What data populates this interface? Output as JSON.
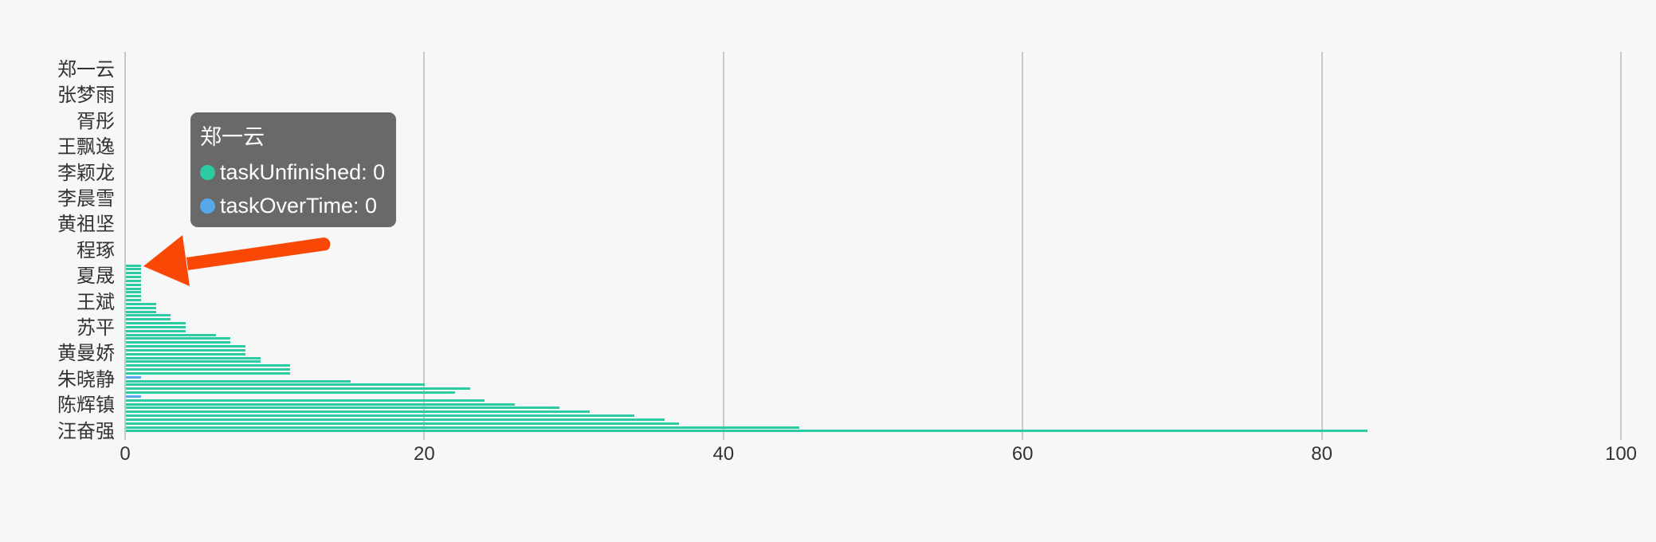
{
  "page": {
    "background_color": "#f7f7f7",
    "grid_color": "#c9c9c9",
    "axis_text_color": "#333333"
  },
  "chart_data": {
    "type": "bar",
    "orientation": "horizontal",
    "title": "",
    "xlabel": "",
    "ylabel": "",
    "xlim": [
      0,
      100
    ],
    "x_ticks": [
      "0",
      "20",
      "40",
      "60",
      "80",
      "100"
    ],
    "grid": true,
    "visible_y_labels": [
      "郑一云",
      "张梦雨",
      "胥彤",
      "王飘逸",
      "李颖龙",
      "李晨雪",
      "黄祖坚",
      "程琢",
      "夏晟",
      "王斌",
      "苏平",
      "黄曼娇",
      "朱晓静",
      "陈辉镇",
      "汪奋强"
    ],
    "series": [
      {
        "name": "taskUnfinished",
        "color": "#2CCBA4"
      },
      {
        "name": "taskOverTime",
        "color": "#57A8EA"
      }
    ],
    "bars": [
      {
        "s": 0,
        "v": 1
      },
      {
        "s": 0,
        "v": 1
      },
      {
        "s": 0,
        "v": 1
      },
      {
        "s": 0,
        "v": 1
      },
      {
        "s": 0,
        "v": 1
      },
      {
        "s": 0,
        "v": 1
      },
      {
        "s": 0,
        "v": 1
      },
      {
        "s": 0,
        "v": 1
      },
      {
        "s": 0,
        "v": 1
      },
      {
        "s": 0,
        "v": 1
      },
      {
        "s": 0,
        "v": 2
      },
      {
        "s": 0,
        "v": 2
      },
      {
        "s": 0,
        "v": 2
      },
      {
        "s": 0,
        "v": 3
      },
      {
        "s": 0,
        "v": 3
      },
      {
        "s": 0,
        "v": 4
      },
      {
        "s": 0,
        "v": 4
      },
      {
        "s": 0,
        "v": 4
      },
      {
        "s": 0,
        "v": 6
      },
      {
        "s": 0,
        "v": 7
      },
      {
        "s": 0,
        "v": 7
      },
      {
        "s": 0,
        "v": 8
      },
      {
        "s": 0,
        "v": 8
      },
      {
        "s": 0,
        "v": 8
      },
      {
        "s": 0,
        "v": 9
      },
      {
        "s": 0,
        "v": 9
      },
      {
        "s": 0,
        "v": 11
      },
      {
        "s": 0,
        "v": 11
      },
      {
        "s": 0,
        "v": 11
      },
      {
        "s": 1,
        "v": 1
      },
      {
        "s": 0,
        "v": 15
      },
      {
        "s": 0,
        "v": 20
      },
      {
        "s": 0,
        "v": 23
      },
      {
        "s": 0,
        "v": 22
      },
      {
        "s": 1,
        "v": 1
      },
      {
        "s": 0,
        "v": 24
      },
      {
        "s": 0,
        "v": 26
      },
      {
        "s": 0,
        "v": 29
      },
      {
        "s": 0,
        "v": 31
      },
      {
        "s": 0,
        "v": 34
      },
      {
        "s": 0,
        "v": 36
      },
      {
        "s": 0,
        "v": 37
      },
      {
        "s": 0,
        "v": 45
      },
      {
        "s": 0,
        "v": 83
      }
    ]
  },
  "tooltip": {
    "title": "郑一云",
    "items": [
      {
        "label": "taskUnfinished",
        "value": "0",
        "color": "#2CCBA4"
      },
      {
        "label": "taskOverTime",
        "value": "0",
        "color": "#57A8EA"
      }
    ]
  },
  "annotation": {
    "arrow_color": "#F94806"
  }
}
